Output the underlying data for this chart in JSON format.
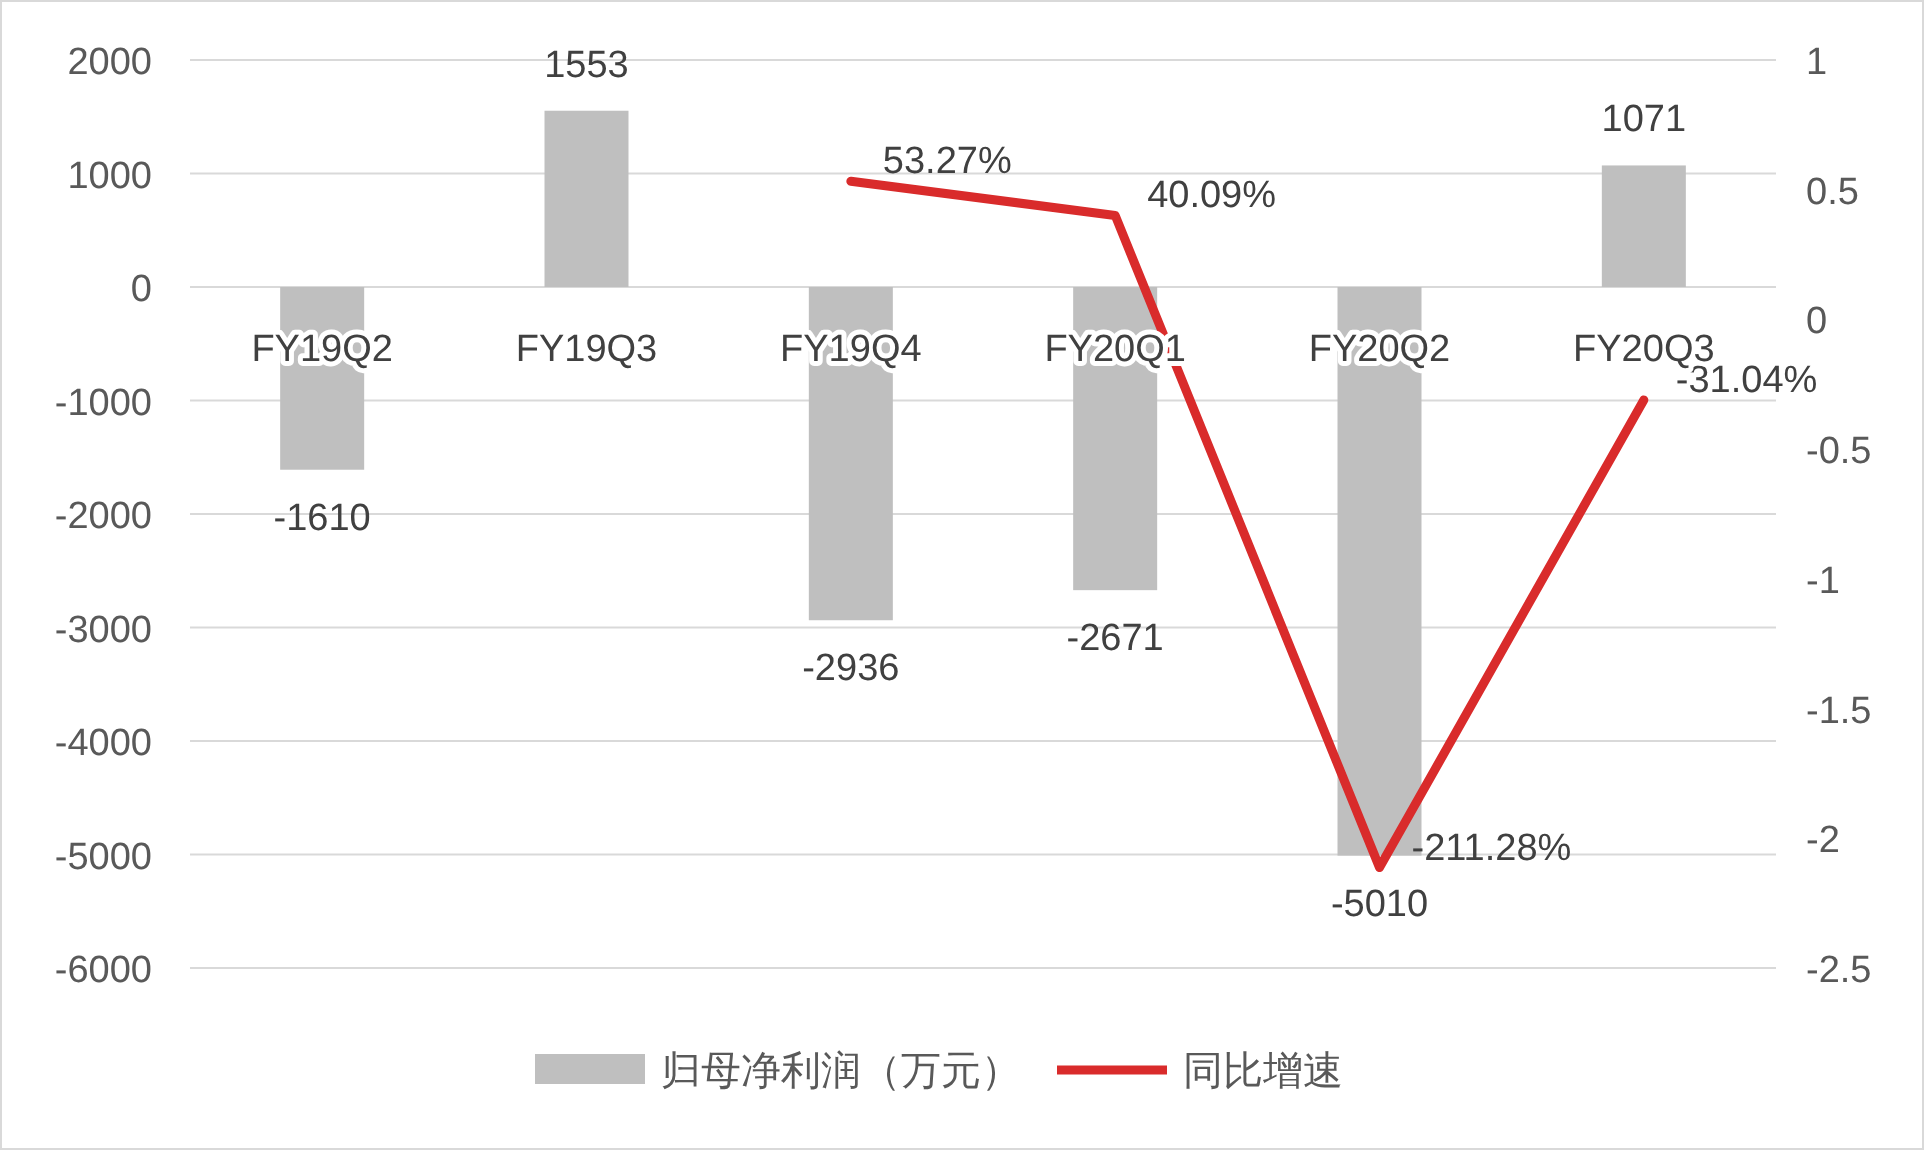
{
  "chart_data": {
    "type": "bar",
    "categories": [
      "FY19Q2",
      "FY19Q3",
      "FY19Q4",
      "FY20Q1",
      "FY20Q2",
      "FY20Q3"
    ],
    "series": [
      {
        "name": "归母净利润（万元）",
        "color": "#bfbfbf",
        "values": [
          -1610,
          1553,
          -2936,
          -2671,
          -5010,
          1071
        ],
        "value_labels": [
          "-1610",
          "1553",
          "-2936",
          "-2671",
          "-5010",
          "1071"
        ]
      },
      {
        "name": "同比增速",
        "type": "line",
        "axis": "y2",
        "color": "#d92b2b",
        "values": [
          null,
          null,
          0.5327,
          0.4009,
          -2.1128,
          -0.3104
        ],
        "value_labels": [
          null,
          null,
          "53.27%",
          "40.09%",
          "-211.28%",
          "-31.04%"
        ]
      }
    ],
    "ylim": [
      -6000,
      2000
    ],
    "yticks": [
      -6000,
      -5000,
      -4000,
      -3000,
      -2000,
      -1000,
      0,
      1000,
      2000
    ],
    "y2lim": [
      -2.5,
      1
    ],
    "y2ticks": [
      -2.5,
      -2,
      -1.5,
      -1,
      -0.5,
      0,
      0.5,
      1
    ],
    "grid": "y",
    "legend": "bottom",
    "marker": "none"
  }
}
